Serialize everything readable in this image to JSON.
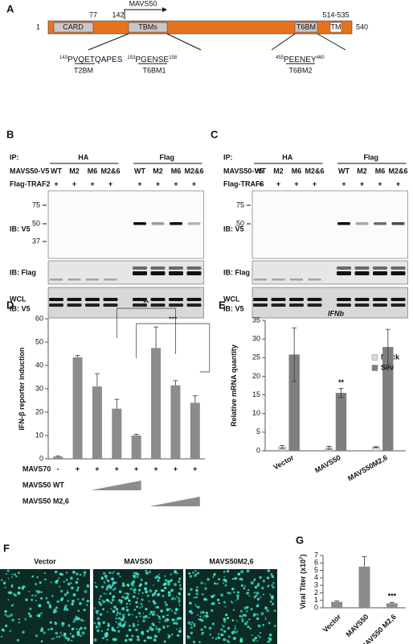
{
  "panel_a": {
    "letter": "A",
    "start": 1,
    "end": 540,
    "card": "CARD",
    "card_end": 77,
    "mavs50_start": 142,
    "mavs50": "MAVS50",
    "tbms": "TBMs",
    "t6bm": "T6BM",
    "tm": "TM",
    "tm_range": "514-535",
    "motif1": {
      "sup": "143",
      "text": "PVQETQAPES"
    },
    "motif2": {
      "sup": "153",
      "text": "PGENSE",
      "sup_end": "158"
    },
    "motif3": {
      "sup": "455",
      "text": "PEENEY",
      "sup_end": "460"
    },
    "t2bm": "T2BM",
    "t6bm1": "T6BM1",
    "t6bm2": "T6BM2"
  },
  "panel_b": {
    "letter": "B",
    "ip": "IP:",
    "ha": "HA",
    "flag": "Flag",
    "construct": "MAVS50-V5",
    "lanes": [
      "WT",
      "M2",
      "M6",
      "M2&6",
      "WT",
      "M2",
      "M6",
      "M2&6"
    ],
    "traf": "Flag-TRAF2",
    "plus": [
      "+",
      "+",
      "+",
      "+",
      "+",
      "+",
      "+",
      "+"
    ],
    "ib1": "IB: V5",
    "markers": [
      75,
      50,
      37
    ],
    "ib2": "IB: Flag",
    "wcl": "WCL",
    "ib3": "IB: V5"
  },
  "panel_c": {
    "letter": "C",
    "ip": "IP:",
    "ha": "HA",
    "flag": "Flag",
    "construct": "MAVS50-V5",
    "lanes": [
      "WT",
      "M2",
      "M6",
      "M2&6",
      "WT",
      "M2",
      "M6",
      "M2&6"
    ],
    "traf": "Flag-TRAF6",
    "plus": [
      "+",
      "+",
      "+",
      "+",
      "+",
      "+",
      "+",
      "+"
    ],
    "ib1": "IB: V5",
    "markers": [
      75,
      50
    ],
    "ib2": "IB: Flag",
    "wcl": "WCL",
    "ib3": "IB: V5"
  },
  "panel_f": {
    "letter": "F",
    "labels": [
      "Vector",
      "MAVS50",
      "MAVS50M2,6"
    ]
  },
  "chart_data": [
    {
      "type": "bar",
      "letter": "D",
      "ylabel": "IFN-β reporter induction",
      "categories": [
        "-",
        "+",
        "+",
        "+",
        "+",
        "+",
        "+",
        "+"
      ],
      "row_labels": [
        "MAVS70",
        "MAVS50 WT",
        "MAVS50 M2,6"
      ],
      "values": [
        1,
        43.5,
        31,
        21.5,
        10,
        47.5,
        31.5,
        24
      ],
      "errors": [
        0.3,
        0.8,
        5.5,
        4,
        0.5,
        9,
        2,
        3
      ],
      "color": "#8c8c8c",
      "ylim": [
        0,
        60
      ],
      "yticks": [
        0,
        10,
        20,
        30,
        40,
        50,
        60
      ],
      "annotations": [
        "**",
        "***"
      ]
    },
    {
      "type": "grouped_bar",
      "letter": "E",
      "title": "IFNb",
      "ylabel": "Relative mRNA quantity",
      "categories": [
        "Vector",
        "MAVS50",
        "MAVS50M2,6"
      ],
      "series": [
        {
          "name": "Mock",
          "color": "#d9d9d9",
          "values": [
            1,
            0.8,
            1
          ],
          "errors": [
            0.4,
            0.4,
            0.1
          ]
        },
        {
          "name": "Sev",
          "color": "#7f7f7f",
          "values": [
            25.8,
            15.5,
            27.8
          ],
          "errors": [
            7.2,
            1.2,
            4.8
          ]
        }
      ],
      "ylim": [
        0,
        35
      ],
      "yticks": [
        0,
        5,
        10,
        15,
        20,
        25,
        30,
        35
      ],
      "legend": "right",
      "annotations": [
        "**"
      ]
    },
    {
      "type": "bar",
      "letter": "G",
      "ylabel": "Viral Titer (x10",
      "ylabel_sup": "7",
      "ylabel_end": ")",
      "categories": [
        "Vector",
        "MAVS50",
        "MAVS50 M2,6"
      ],
      "values": [
        0.8,
        5.5,
        0.6
      ],
      "errors": [
        0.1,
        1.35,
        0.12
      ],
      "color": "#8c8c8c",
      "ylim": [
        0,
        7
      ],
      "yticks": [
        0,
        1,
        2,
        3,
        4,
        5,
        6,
        7
      ],
      "annotations": [
        "***"
      ]
    }
  ]
}
